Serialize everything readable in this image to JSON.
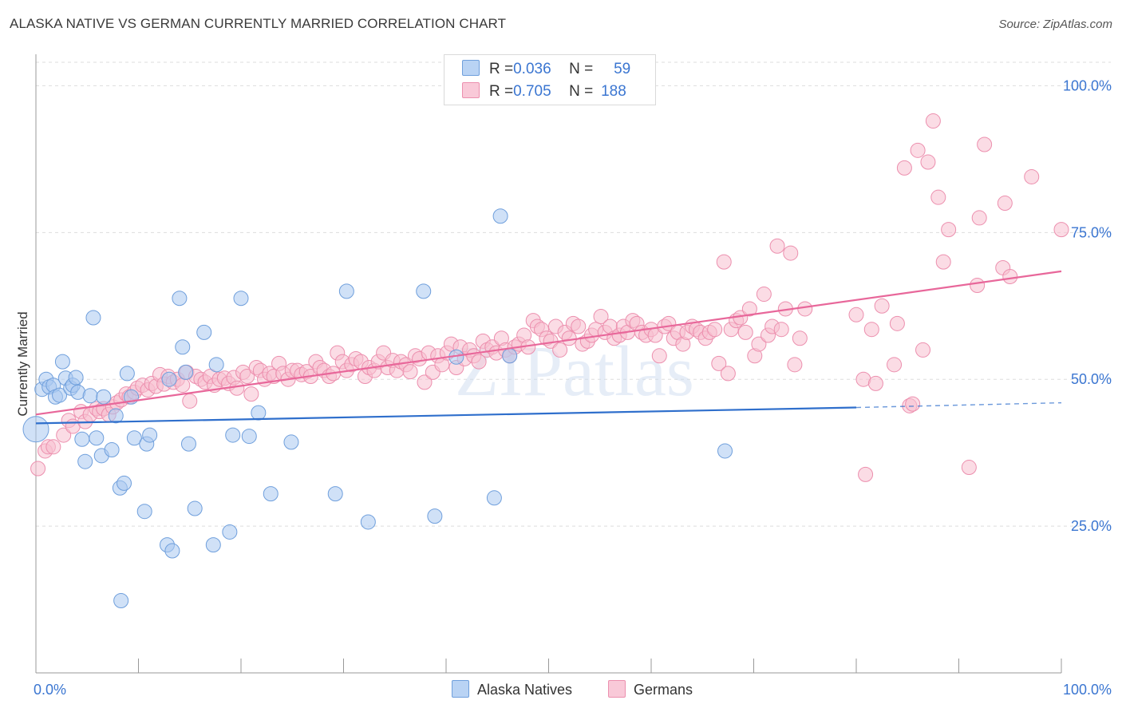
{
  "title": "ALASKA NATIVE VS GERMAN CURRENTLY MARRIED CORRELATION CHART",
  "source": "Source: ZipAtlas.com",
  "watermark": "ZIPatlas",
  "legend_top": [
    {
      "r_label": "R = ",
      "r_value": "0.036",
      "n_label": "N = ",
      "n_value": "59"
    },
    {
      "r_label": "R = ",
      "r_value": "0.705",
      "n_label": "N = ",
      "n_value": "188"
    }
  ],
  "colors": {
    "blue_fill": "#a9c8f0",
    "blue_stroke": "#6f9fdc",
    "blue_line": "#2f6fcc",
    "pink_fill": "#f7bfd0",
    "pink_stroke": "#ec8fae",
    "pink_line": "#e8679a",
    "axis_text": "#3b76d1",
    "grid": "#dddddd"
  },
  "chart_data": {
    "type": "scatter",
    "title": "ALASKA NATIVE VS GERMAN CURRENTLY MARRIED CORRELATION CHART",
    "xlabel": "",
    "ylabel": "Currently Married",
    "xlim": [
      0,
      100
    ],
    "ylim": [
      0,
      104
    ],
    "x_tick_labels": [
      "0.0%",
      "100.0%"
    ],
    "y_ticks": [
      25,
      50,
      75,
      100
    ],
    "y_tick_labels": [
      "25.0%",
      "50.0%",
      "75.0%",
      "100.0%"
    ],
    "legend": [
      "Alaska Natives",
      "Germans"
    ],
    "series": [
      {
        "name": "Alaska Natives",
        "r": 0.036,
        "n": 59,
        "trend": {
          "x0": 0,
          "y0": 42.5,
          "x1": 80,
          "y1": 45.2,
          "dash_x1": 100,
          "dash_y1": 46.0
        },
        "points": [
          [
            0.0,
            41.5
          ],
          [
            0.6,
            48.3
          ],
          [
            1.0,
            50.0
          ],
          [
            1.3,
            48.7
          ],
          [
            1.7,
            49.0
          ],
          [
            1.9,
            47.0
          ],
          [
            2.3,
            47.3
          ],
          [
            2.6,
            53.0
          ],
          [
            2.9,
            50.2
          ],
          [
            3.4,
            48.5
          ],
          [
            3.6,
            49.0
          ],
          [
            3.9,
            50.3
          ],
          [
            4.1,
            47.8
          ],
          [
            4.5,
            39.8
          ],
          [
            4.8,
            36.0
          ],
          [
            5.3,
            47.2
          ],
          [
            5.6,
            60.5
          ],
          [
            5.9,
            40.0
          ],
          [
            6.4,
            37.0
          ],
          [
            6.6,
            47.0
          ],
          [
            7.4,
            38.0
          ],
          [
            7.8,
            43.8
          ],
          [
            8.2,
            31.5
          ],
          [
            8.6,
            32.3
          ],
          [
            8.9,
            51.0
          ],
          [
            9.3,
            47.0
          ],
          [
            9.6,
            40.0
          ],
          [
            10.6,
            27.5
          ],
          [
            10.8,
            39.0
          ],
          [
            11.1,
            40.5
          ],
          [
            12.8,
            21.8
          ],
          [
            13.0,
            50.0
          ],
          [
            13.3,
            20.8
          ],
          [
            14.0,
            63.8
          ],
          [
            14.3,
            55.5
          ],
          [
            14.9,
            39.0
          ],
          [
            14.6,
            51.2
          ],
          [
            15.5,
            28.0
          ],
          [
            16.4,
            58.0
          ],
          [
            17.3,
            21.8
          ],
          [
            17.6,
            52.5
          ],
          [
            18.9,
            24.0
          ],
          [
            19.2,
            40.5
          ],
          [
            20.0,
            63.8
          ],
          [
            20.8,
            40.3
          ],
          [
            21.7,
            44.3
          ],
          [
            22.9,
            30.5
          ],
          [
            24.9,
            39.3
          ],
          [
            8.3,
            12.3
          ],
          [
            29.2,
            30.5
          ],
          [
            30.3,
            65.0
          ],
          [
            32.4,
            25.7
          ],
          [
            37.8,
            65.0
          ],
          [
            38.9,
            26.7
          ],
          [
            41.0,
            53.8
          ],
          [
            44.7,
            29.8
          ],
          [
            46.2,
            54.0
          ],
          [
            45.3,
            77.8
          ],
          [
            67.2,
            37.8
          ]
        ]
      },
      {
        "name": "Germans",
        "r": 0.705,
        "n": 188,
        "trend": {
          "x0": 0,
          "y0": 44.0,
          "x1": 100,
          "y1": 68.4
        },
        "points": [
          [
            0.2,
            34.8
          ],
          [
            0.9,
            37.8
          ],
          [
            1.2,
            38.5
          ],
          [
            1.7,
            38.5
          ],
          [
            2.7,
            40.5
          ],
          [
            3.2,
            43.0
          ],
          [
            3.6,
            42.0
          ],
          [
            4.4,
            44.5
          ],
          [
            4.8,
            42.8
          ],
          [
            5.3,
            44.0
          ],
          [
            5.9,
            45.0
          ],
          [
            6.2,
            44.5
          ],
          [
            6.6,
            45.0
          ],
          [
            7.1,
            44.0
          ],
          [
            7.5,
            45.3
          ],
          [
            7.9,
            46.0
          ],
          [
            8.3,
            46.5
          ],
          [
            8.8,
            47.5
          ],
          [
            9.1,
            47.0
          ],
          [
            9.6,
            47.8
          ],
          [
            9.9,
            48.5
          ],
          [
            10.4,
            49.0
          ],
          [
            10.9,
            48.2
          ],
          [
            11.3,
            49.3
          ],
          [
            11.7,
            48.8
          ],
          [
            12.1,
            50.8
          ],
          [
            12.5,
            49.2
          ],
          [
            12.9,
            50.5
          ],
          [
            13.4,
            49.5
          ],
          [
            13.8,
            50.0
          ],
          [
            14.3,
            49.0
          ],
          [
            14.7,
            51.2
          ],
          [
            15.0,
            46.3
          ],
          [
            15.6,
            50.5
          ],
          [
            16.1,
            50.0
          ],
          [
            16.5,
            49.5
          ],
          [
            17.0,
            50.5
          ],
          [
            17.4,
            49.0
          ],
          [
            17.9,
            50.0
          ],
          [
            18.4,
            50.2
          ],
          [
            18.8,
            49.3
          ],
          [
            19.3,
            50.3
          ],
          [
            19.6,
            48.5
          ],
          [
            20.2,
            51.2
          ],
          [
            20.6,
            50.5
          ],
          [
            21.0,
            47.5
          ],
          [
            21.5,
            52.0
          ],
          [
            21.9,
            51.5
          ],
          [
            22.3,
            50.0
          ],
          [
            22.8,
            51.0
          ],
          [
            23.2,
            50.5
          ],
          [
            23.7,
            52.7
          ],
          [
            24.1,
            51.0
          ],
          [
            24.6,
            50.0
          ],
          [
            25.0,
            51.5
          ],
          [
            25.5,
            51.5
          ],
          [
            25.9,
            50.8
          ],
          [
            26.4,
            51.3
          ],
          [
            26.8,
            50.5
          ],
          [
            27.3,
            53.0
          ],
          [
            27.7,
            52.0
          ],
          [
            28.1,
            51.5
          ],
          [
            28.6,
            50.5
          ],
          [
            29.0,
            51.0
          ],
          [
            29.4,
            54.5
          ],
          [
            29.9,
            53.0
          ],
          [
            30.3,
            51.5
          ],
          [
            30.8,
            52.5
          ],
          [
            31.2,
            53.5
          ],
          [
            31.7,
            53.0
          ],
          [
            32.1,
            50.5
          ],
          [
            32.5,
            52.0
          ],
          [
            33.0,
            51.5
          ],
          [
            33.4,
            53.0
          ],
          [
            33.9,
            54.5
          ],
          [
            34.3,
            52.0
          ],
          [
            34.8,
            53.2
          ],
          [
            35.2,
            51.5
          ],
          [
            35.6,
            53.0
          ],
          [
            36.1,
            52.5
          ],
          [
            36.5,
            51.3
          ],
          [
            37.0,
            54.0
          ],
          [
            37.4,
            53.5
          ],
          [
            37.9,
            49.5
          ],
          [
            38.3,
            54.5
          ],
          [
            38.7,
            51.2
          ],
          [
            39.2,
            54.0
          ],
          [
            39.6,
            52.5
          ],
          [
            40.1,
            54.5
          ],
          [
            40.5,
            56.0
          ],
          [
            41.0,
            52.0
          ],
          [
            41.4,
            55.5
          ],
          [
            41.8,
            53.5
          ],
          [
            42.3,
            55.0
          ],
          [
            42.7,
            54.0
          ],
          [
            43.2,
            53.0
          ],
          [
            43.6,
            56.5
          ],
          [
            44.0,
            55.0
          ],
          [
            44.5,
            55.5
          ],
          [
            44.9,
            54.5
          ],
          [
            45.4,
            57.0
          ],
          [
            45.8,
            55.0
          ],
          [
            46.2,
            54.0
          ],
          [
            46.7,
            55.5
          ],
          [
            47.1,
            56.0
          ],
          [
            47.6,
            57.5
          ],
          [
            48.0,
            55.5
          ],
          [
            48.5,
            60.0
          ],
          [
            48.9,
            59.0
          ],
          [
            49.3,
            58.5
          ],
          [
            49.8,
            57.0
          ],
          [
            50.2,
            56.5
          ],
          [
            50.7,
            59.0
          ],
          [
            51.1,
            55.0
          ],
          [
            51.6,
            58.0
          ],
          [
            52.0,
            57.0
          ],
          [
            52.4,
            59.5
          ],
          [
            52.9,
            59.0
          ],
          [
            53.3,
            56.0
          ],
          [
            53.8,
            56.5
          ],
          [
            54.2,
            57.5
          ],
          [
            54.6,
            58.5
          ],
          [
            55.1,
            60.7
          ],
          [
            55.5,
            58.0
          ],
          [
            56.0,
            59.0
          ],
          [
            56.4,
            57.0
          ],
          [
            56.9,
            57.5
          ],
          [
            57.3,
            59.0
          ],
          [
            57.7,
            58.0
          ],
          [
            58.2,
            60.0
          ],
          [
            58.6,
            59.5
          ],
          [
            59.1,
            58.0
          ],
          [
            59.5,
            57.5
          ],
          [
            60.0,
            58.5
          ],
          [
            60.4,
            57.5
          ],
          [
            60.8,
            54.0
          ],
          [
            61.3,
            59.0
          ],
          [
            61.7,
            59.5
          ],
          [
            62.2,
            57.0
          ],
          [
            62.6,
            58.0
          ],
          [
            63.1,
            56.0
          ],
          [
            63.5,
            58.0
          ],
          [
            64.0,
            59.0
          ],
          [
            64.4,
            58.5
          ],
          [
            64.8,
            58.0
          ],
          [
            65.3,
            57.0
          ],
          [
            65.7,
            58.0
          ],
          [
            66.2,
            58.5
          ],
          [
            66.6,
            52.7
          ],
          [
            67.1,
            70.0
          ],
          [
            67.5,
            51.0
          ],
          [
            67.8,
            58.5
          ],
          [
            68.3,
            60.0
          ],
          [
            68.7,
            60.5
          ],
          [
            69.2,
            58.0
          ],
          [
            69.6,
            62.0
          ],
          [
            70.1,
            54.0
          ],
          [
            70.5,
            56.0
          ],
          [
            71.0,
            64.5
          ],
          [
            71.4,
            57.5
          ],
          [
            71.8,
            59.0
          ],
          [
            72.3,
            72.7
          ],
          [
            72.7,
            58.5
          ],
          [
            73.1,
            62.0
          ],
          [
            73.6,
            71.5
          ],
          [
            74.0,
            52.5
          ],
          [
            74.5,
            57.0
          ],
          [
            75.0,
            62.0
          ],
          [
            80.0,
            61.0
          ],
          [
            80.7,
            50.0
          ],
          [
            80.9,
            33.8
          ],
          [
            81.5,
            58.5
          ],
          [
            81.9,
            49.3
          ],
          [
            82.5,
            62.5
          ],
          [
            83.7,
            52.5
          ],
          [
            84.0,
            59.5
          ],
          [
            84.7,
            86.0
          ],
          [
            85.2,
            45.5
          ],
          [
            86.0,
            89.0
          ],
          [
            86.5,
            55.0
          ],
          [
            87.0,
            87.0
          ],
          [
            87.5,
            94.0
          ],
          [
            88.0,
            81.0
          ],
          [
            88.5,
            70.0
          ],
          [
            89.0,
            75.5
          ],
          [
            91.0,
            35.0
          ],
          [
            91.8,
            66.0
          ],
          [
            92.0,
            77.5
          ],
          [
            92.5,
            90.0
          ],
          [
            94.3,
            69.0
          ],
          [
            94.5,
            80.0
          ],
          [
            95.0,
            67.5
          ],
          [
            97.1,
            84.5
          ],
          [
            100.0,
            75.5
          ],
          [
            85.5,
            45.8
          ]
        ]
      }
    ]
  }
}
